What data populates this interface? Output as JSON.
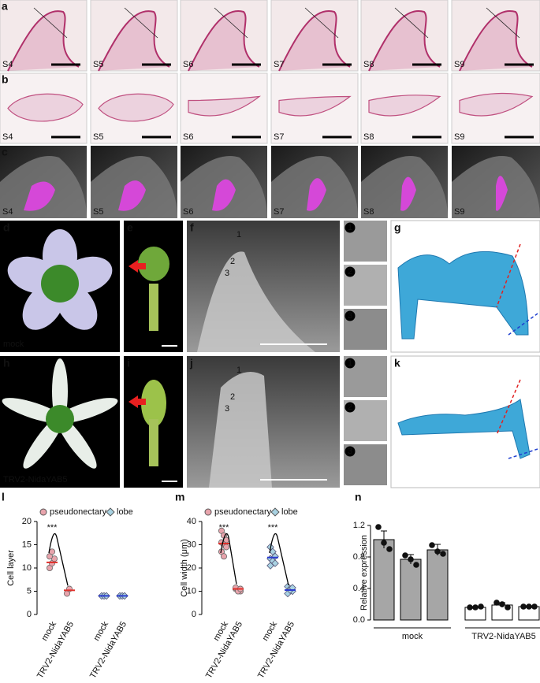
{
  "letters": [
    "a",
    "b",
    "c",
    "d",
    "e",
    "f",
    "g",
    "h",
    "i",
    "j",
    "k"
  ],
  "stages": [
    "S4",
    "S5",
    "S6",
    "S7",
    "S8",
    "S9"
  ],
  "d_caption": "mock",
  "h_caption": "TRV2-NidaYAB5",
  "sem_points": [
    "1",
    "2",
    "3"
  ],
  "insets": [
    "1",
    "2",
    "3"
  ],
  "chart_data": [
    {
      "type": "dot",
      "label": "l",
      "ylabel": "Cell layer",
      "ylim": [
        0,
        20
      ],
      "yticks": [
        0,
        5,
        10,
        15,
        20
      ],
      "categories": [
        "mock",
        "TRV2-NidaYAB5",
        "mock",
        "TRV2-NidaYAB5"
      ],
      "significance": [
        "***",
        null,
        null,
        null
      ],
      "series": [
        {
          "name": "pseudonectary",
          "color": "#e8a4ac",
          "mean_color": "#e0302a",
          "marker": "circle",
          "values": [
            [
              10,
              11,
              12,
              12.5,
              13.5
            ],
            [
              4.5,
              5.5
            ],
            null,
            null
          ],
          "means": [
            11.2,
            5.2,
            null,
            null
          ]
        },
        {
          "name": "lobe",
          "color": "#a9d2e2",
          "mean_color": "#2a3ad0",
          "marker": "diamond",
          "values": [
            null,
            null,
            [
              4,
              4,
              4
            ],
            [
              4,
              4,
              4
            ]
          ],
          "means": [
            null,
            null,
            4,
            4
          ]
        }
      ]
    },
    {
      "type": "dot",
      "label": "m",
      "ylabel": "Cell width (μm)",
      "ylim": [
        0,
        40
      ],
      "yticks": [
        0,
        10,
        20,
        30,
        40
      ],
      "categories": [
        "mock",
        "TRV2-NidaYAB5",
        "mock",
        "TRV2-NidaYAB5"
      ],
      "significance": [
        "***",
        null,
        "***",
        null
      ],
      "series": [
        {
          "name": "pseudonectary",
          "color": "#e8a4ac",
          "mean_color": "#e0302a",
          "marker": "circle",
          "values": [
            [
              36,
              34,
              32,
              31,
              30,
              29,
              27,
              25
            ],
            [
              11,
              10.5,
              10,
              11.5,
              10,
              11
            ],
            null,
            null
          ],
          "means": [
            30.5,
            11,
            null,
            null
          ]
        },
        {
          "name": "lobe",
          "color": "#a9d2e2",
          "mean_color": "#2a3ad0",
          "marker": "diamond",
          "values": [
            null,
            null,
            [
              29,
              27,
              25,
              24,
              23,
              22,
              21
            ],
            [
              12,
              11,
              10,
              9,
              10.5,
              11.5
            ]
          ],
          "means": [
            null,
            null,
            24.5,
            10.5
          ]
        }
      ]
    },
    {
      "type": "bar",
      "label": "n",
      "ylabel": "Relative expression",
      "ylim": [
        0,
        1.2
      ],
      "yticks": [
        {
          "value": 0,
          "label": "0.0"
        },
        0.4,
        0.8,
        1.2
      ],
      "categories": [
        null,
        null,
        null,
        null,
        null,
        null
      ],
      "groups": [
        "mock",
        "TRV2-NidaYAB5"
      ],
      "colors": [
        "#a6a6a6",
        "#a6a6a6",
        "#a6a6a6",
        "#ffffff",
        "#ffffff",
        "#ffffff"
      ],
      "values": [
        1.02,
        0.77,
        0.89,
        0.16,
        0.19,
        0.17
      ],
      "errors": [
        0.11,
        0.06,
        0.07,
        0.01,
        0.03,
        0.01
      ],
      "points": [
        [
          1.18,
          0.98,
          0.9
        ],
        [
          0.82,
          0.77,
          0.7
        ],
        [
          0.95,
          0.87,
          0.84
        ],
        [
          0.16,
          0.16,
          0.17
        ],
        [
          0.22,
          0.2,
          0.16
        ],
        [
          0.17,
          0.17,
          0.17
        ]
      ]
    }
  ]
}
